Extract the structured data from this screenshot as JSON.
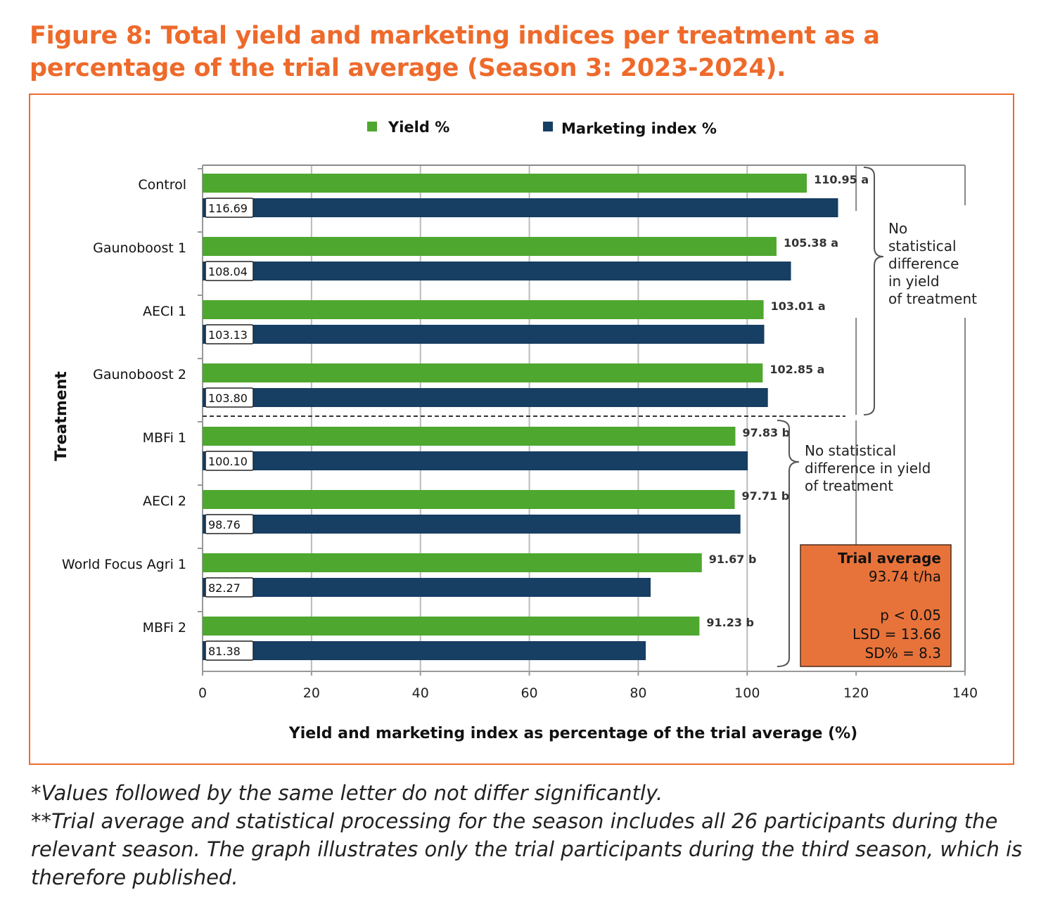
{
  "figure": {
    "title": "Figure 8: Total yield and marketing indices per treatment as a percentage of the trial average (Season 3: 2023-2024).",
    "footnotes": [
      "*Values followed by the same letter do not differ significantly.",
      "**Trial average and statistical processing for the season includes all 26 participants during the relevant season. The graph illustrates only the trial participants during the third season, which is therefore published."
    ]
  },
  "chart_data": {
    "type": "bar",
    "orientation": "horizontal",
    "categories": [
      "Control",
      "Gaunoboost 1",
      "AECI 1",
      "Gaunoboost 2",
      "MBFi 1",
      "AECI 2",
      "World Focus Agri 1",
      "MBFi 2"
    ],
    "series": [
      {
        "name": "Yield %",
        "color": "#4ea72e",
        "values": [
          110.95,
          105.38,
          103.01,
          102.85,
          97.83,
          97.71,
          91.67,
          91.23
        ],
        "labels": [
          "110.95 a",
          "105.38 a",
          "103.01 a",
          "102.85 a",
          "97.83 b",
          "97.71 b",
          "91.67 b",
          "91.23 b"
        ]
      },
      {
        "name": "Marketing index %",
        "color": "#173e63",
        "values": [
          116.69,
          108.04,
          103.13,
          103.8,
          100.1,
          98.76,
          82.27,
          81.38
        ],
        "labels": [
          "116.69",
          "108.04",
          "103.13",
          "103.80",
          "100.10",
          "98.76",
          "82.27",
          "81.38"
        ]
      }
    ],
    "xlabel": "Yield and marketing index as percentage of the trial average (%)",
    "ylabel": "Treatment",
    "xlim": [
      0,
      140
    ],
    "xticks": [
      "0",
      "20",
      "40",
      "60",
      "80",
      "100",
      "120",
      "140"
    ],
    "grid": true,
    "legend": "top-center",
    "annotations": {
      "group_a": [
        "No",
        "statistical",
        "difference",
        "in yield",
        "of treatment"
      ],
      "group_b": [
        "No statistical",
        "difference in yield",
        "of treatment"
      ],
      "trial_box": {
        "title": "Trial average",
        "value": "93.74 t/ha",
        "p": "p < 0.05",
        "lsd": "LSD = 13.66",
        "sd": "SD% = 8.3",
        "color": "#e8733a"
      }
    }
  }
}
